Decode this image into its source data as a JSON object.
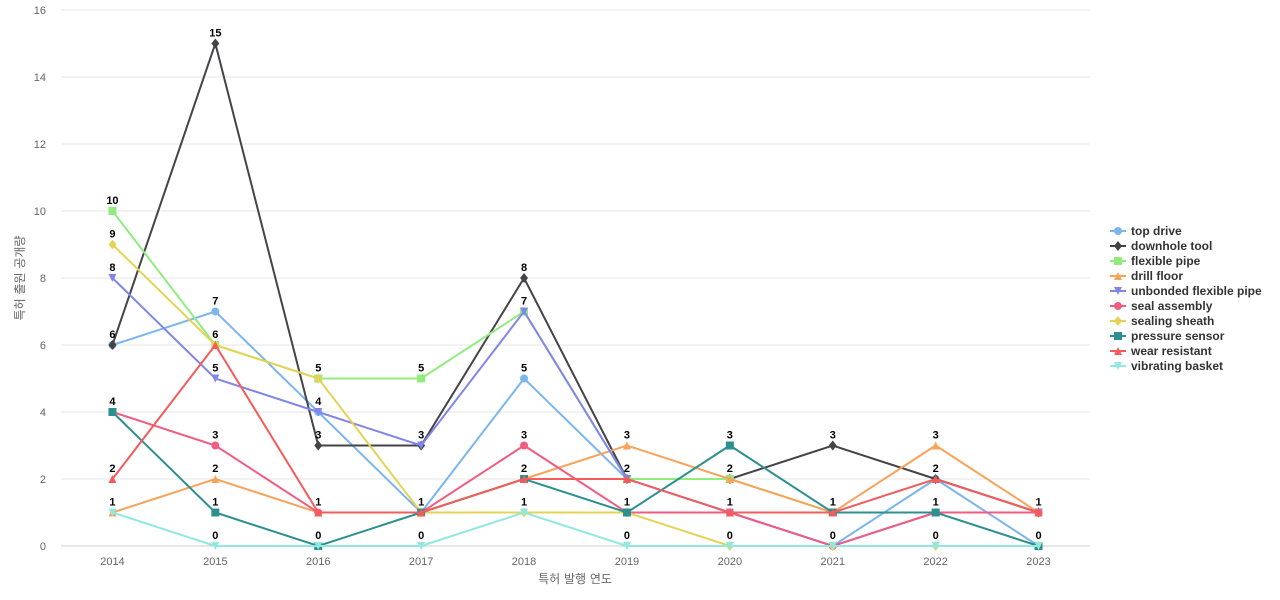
{
  "chart_data": {
    "type": "line",
    "title": "",
    "xlabel": "특허 발행 연도",
    "ylabel": "특허 출원 공개량",
    "x": [
      "2014",
      "2015",
      "2016",
      "2017",
      "2018",
      "2019",
      "2020",
      "2021",
      "2022",
      "2023"
    ],
    "ylim": [
      0,
      16
    ],
    "yticks": [
      0,
      2,
      4,
      6,
      8,
      10,
      12,
      14,
      16
    ],
    "grid": true,
    "legend_position": "right",
    "series": [
      {
        "name": "top drive",
        "color": "#7cb5ec",
        "marker": "circle",
        "values": [
          6,
          7,
          4,
          1,
          5,
          2,
          1,
          0,
          2,
          0
        ]
      },
      {
        "name": "downhole tool",
        "color": "#434348",
        "marker": "diamond",
        "values": [
          6,
          15,
          3,
          3,
          8,
          2,
          2,
          3,
          2,
          1
        ]
      },
      {
        "name": "flexible pipe",
        "color": "#90ed7d",
        "marker": "square",
        "values": [
          10,
          6,
          5,
          5,
          7,
          2,
          2,
          1,
          1,
          1
        ]
      },
      {
        "name": "drill floor",
        "color": "#f7a35c",
        "marker": "triangle",
        "values": [
          1,
          2,
          1,
          1,
          2,
          3,
          2,
          1,
          3,
          1
        ]
      },
      {
        "name": "unbonded flexible pipe",
        "color": "#8085e9",
        "marker": "triangle-down",
        "values": [
          8,
          5,
          4,
          3,
          7,
          2,
          1,
          0,
          1,
          1
        ]
      },
      {
        "name": "seal assembly",
        "color": "#f15c80",
        "marker": "circle",
        "values": [
          4,
          3,
          1,
          1,
          3,
          1,
          1,
          0,
          1,
          1
        ]
      },
      {
        "name": "sealing sheath",
        "color": "#e4d354",
        "marker": "diamond",
        "values": [
          9,
          6,
          5,
          1,
          1,
          1,
          0,
          0,
          0,
          0
        ]
      },
      {
        "name": "pressure sensor",
        "color": "#2b908f",
        "marker": "square",
        "values": [
          4,
          1,
          0,
          1,
          2,
          1,
          3,
          1,
          1,
          0
        ]
      },
      {
        "name": "wear resistant",
        "color": "#f45b5b",
        "marker": "triangle",
        "values": [
          2,
          6,
          1,
          1,
          2,
          2,
          1,
          1,
          2,
          1
        ]
      },
      {
        "name": "vibrating basket",
        "color": "#91e8e1",
        "marker": "triangle-down",
        "values": [
          1,
          0,
          0,
          0,
          1,
          0,
          0,
          0,
          0,
          0
        ]
      }
    ],
    "data_labels": [
      {
        "x": "2014",
        "values": [
          10,
          9,
          8,
          6,
          4,
          2,
          1
        ]
      },
      {
        "x": "2015",
        "values": [
          15,
          7,
          6,
          5,
          3,
          2,
          1,
          0
        ]
      },
      {
        "x": "2016",
        "values": [
          5,
          4,
          3,
          1,
          0
        ]
      },
      {
        "x": "2017",
        "values": [
          5,
          3,
          1,
          0
        ]
      },
      {
        "x": "2018",
        "values": [
          8,
          7,
          5,
          3,
          2,
          1
        ]
      },
      {
        "x": "2019",
        "values": [
          3,
          2,
          1,
          0
        ]
      },
      {
        "x": "2020",
        "values": [
          3,
          2,
          1,
          0
        ]
      },
      {
        "x": "2021",
        "values": [
          3,
          1,
          0
        ]
      },
      {
        "x": "2022",
        "values": [
          3,
          2,
          1,
          0
        ]
      },
      {
        "x": "2023",
        "values": [
          1,
          0
        ]
      }
    ]
  }
}
